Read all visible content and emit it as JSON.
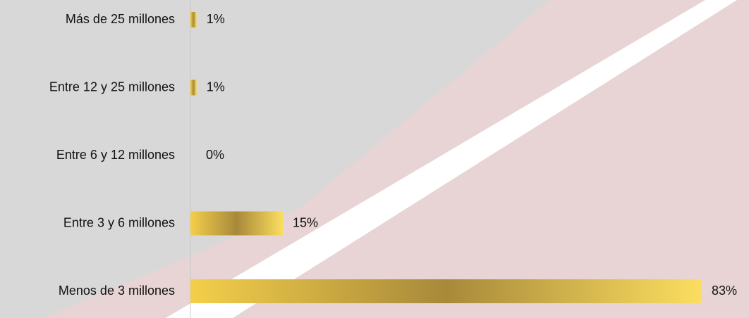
{
  "chart_data": {
    "type": "bar",
    "orientation": "horizontal",
    "categories": [
      "Más de 25 millones",
      "Entre 12 y 25 millones",
      "Entre 6 y 12 millones",
      "Entre 3 y 6 millones",
      "Menos de 3 millones"
    ],
    "values": [
      1,
      1,
      0,
      15,
      83
    ],
    "value_labels": [
      "1%",
      "1%",
      "0%",
      "15%",
      "83%"
    ],
    "color": "#f5d24a"
  }
}
